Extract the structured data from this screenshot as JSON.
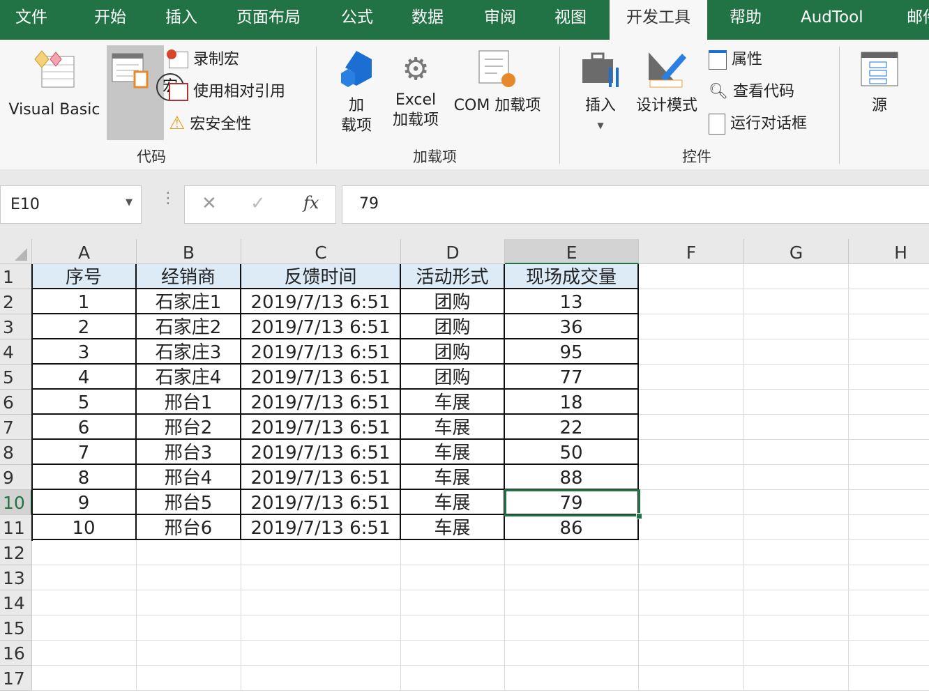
{
  "tabs": [
    "文件",
    "开始",
    "插入",
    "页面布局",
    "公式",
    "数据",
    "审阅",
    "视图",
    "开发工具",
    "帮助",
    "AudTool",
    "邮件"
  ],
  "active_tab": "开发工具",
  "ribbon": {
    "code": {
      "visual_basic": "Visual Basic",
      "macros": "宏",
      "record_macro": "录制宏",
      "relative_ref": "使用相对引用",
      "macro_security": "宏安全性",
      "group": "代码"
    },
    "addins": {
      "addins_l1": "加",
      "addins_l2": "载项",
      "excel_l1": "Excel",
      "excel_l2": "加载项",
      "com": "COM 加载项",
      "group": "加载项"
    },
    "controls": {
      "insert": "插入",
      "design_mode": "设计模式",
      "properties": "属性",
      "view_code": "查看代码",
      "run_dialog": "运行对话框",
      "group": "控件"
    },
    "xml": {
      "source": "源"
    }
  },
  "name_box": "E10",
  "formula": "79",
  "columns": [
    "A",
    "B",
    "C",
    "D",
    "E",
    "F",
    "G",
    "H"
  ],
  "rows": [
    "1",
    "2",
    "3",
    "4",
    "5",
    "6",
    "7",
    "8",
    "9",
    "10",
    "11",
    "12",
    "13",
    "14",
    "15",
    "16",
    "17"
  ],
  "selected_cell": "E10",
  "table": {
    "headers": [
      "序号",
      "经销商",
      "反馈时间",
      "活动形式",
      "现场成交量"
    ],
    "rows": [
      [
        "1",
        "石家庄1",
        "2019/7/13 6:51",
        "团购",
        "13"
      ],
      [
        "2",
        "石家庄2",
        "2019/7/13 6:51",
        "团购",
        "36"
      ],
      [
        "3",
        "石家庄3",
        "2019/7/13 6:51",
        "团购",
        "95"
      ],
      [
        "4",
        "石家庄4",
        "2019/7/13 6:51",
        "团购",
        "77"
      ],
      [
        "5",
        "邢台1",
        "2019/7/13 6:51",
        "车展",
        "18"
      ],
      [
        "6",
        "邢台2",
        "2019/7/13 6:51",
        "车展",
        "22"
      ],
      [
        "7",
        "邢台3",
        "2019/7/13 6:51",
        "车展",
        "50"
      ],
      [
        "8",
        "邢台4",
        "2019/7/13 6:51",
        "车展",
        "88"
      ],
      [
        "9",
        "邢台5",
        "2019/7/13 6:51",
        "车展",
        "79"
      ],
      [
        "10",
        "邢台6",
        "2019/7/13 6:51",
        "车展",
        "86"
      ]
    ]
  },
  "colors": {
    "brand": "#217346",
    "header_fill": "#ddebf7"
  }
}
